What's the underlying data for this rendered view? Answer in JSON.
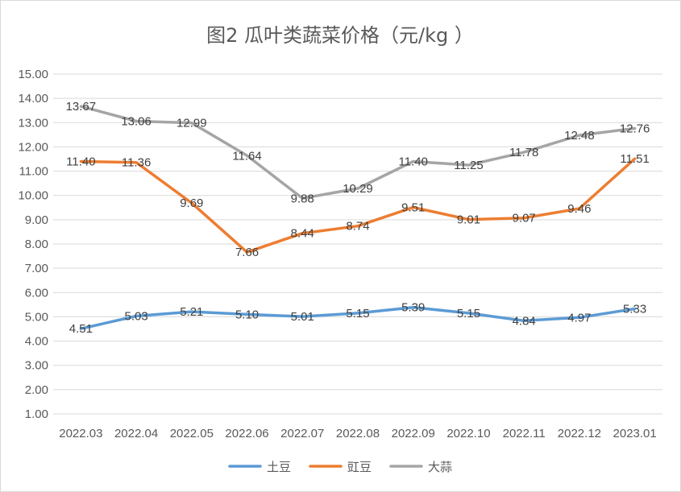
{
  "chart_data": {
    "type": "line",
    "title": "图2   瓜叶类蔬菜价格（元/kg ）",
    "xlabel": "",
    "ylabel": "",
    "categories": [
      "2022.03",
      "2022.04",
      "2022.05",
      "2022.06",
      "2022.07",
      "2022.08",
      "2022.09",
      "2022.10",
      "2022.11",
      "2022.12",
      "2023.01"
    ],
    "ylim": [
      1.0,
      15.0
    ],
    "ystep": 1.0,
    "ytick_labels": [
      "1.00",
      "2.00",
      "3.00",
      "4.00",
      "5.00",
      "6.00",
      "7.00",
      "8.00",
      "9.00",
      "10.00",
      "11.00",
      "12.00",
      "13.00",
      "14.00",
      "15.00"
    ],
    "grid": true,
    "legend_position": "bottom",
    "series": [
      {
        "name": "土豆",
        "color": "#5B9BD5",
        "values": [
          4.51,
          5.03,
          5.21,
          5.1,
          5.01,
          5.15,
          5.39,
          5.15,
          4.84,
          4.97,
          5.33
        ],
        "labels": [
          "4.51",
          "5.03",
          "5.21",
          "5.10",
          "5.01",
          "5.15",
          "5.39",
          "5.15",
          "4.84",
          "4.97",
          "5.33"
        ]
      },
      {
        "name": "豇豆",
        "color": "#ED7D31",
        "values": [
          11.4,
          11.36,
          9.69,
          7.66,
          8.44,
          8.74,
          9.51,
          9.01,
          9.07,
          9.46,
          11.51
        ],
        "labels": [
          "11.40",
          "11.36",
          "9.69",
          "7.66",
          "8.44",
          "8.74",
          "9.51",
          "9.01",
          "9.07",
          "9.46",
          "11.51"
        ]
      },
      {
        "name": "大蒜",
        "color": "#A5A5A5",
        "values": [
          13.67,
          13.06,
          12.99,
          11.64,
          9.88,
          10.29,
          11.4,
          11.25,
          11.78,
          12.48,
          12.76
        ],
        "labels": [
          "13.67",
          "13.06",
          "12.99",
          "11.64",
          "9.88",
          "10.29",
          "11.40",
          "11.25",
          "11.78",
          "12.48",
          "12.76"
        ]
      }
    ]
  }
}
